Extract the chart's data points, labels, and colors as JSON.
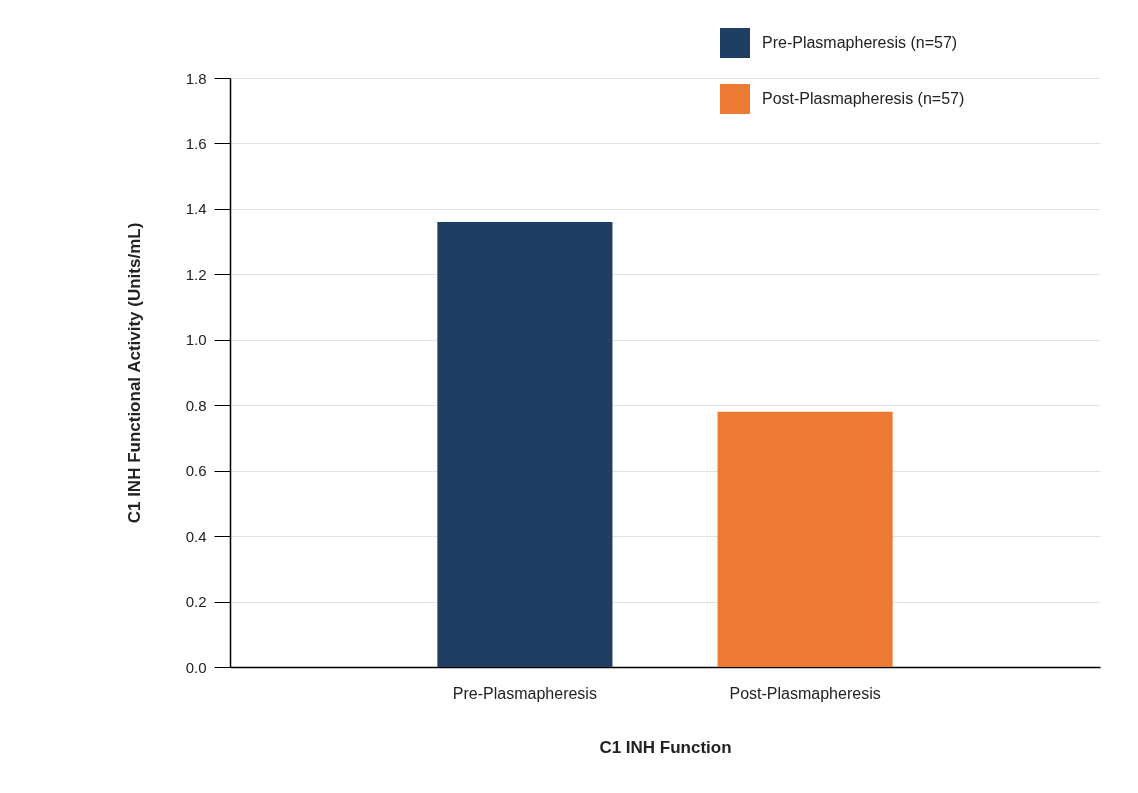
{
  "chart_data": {
    "type": "bar",
    "xlabel": "C1 INH Function",
    "ylabel": "C1 INH Functional Activity (Units/mL)",
    "categories": [
      "Pre-Plasmapheresis",
      "Post-Plasmapheresis"
    ],
    "series": [
      {
        "name": "Pre-Plasmapheresis (n=57)",
        "color": "#1e3f63",
        "values": [
          1.36,
          null
        ]
      },
      {
        "name": "Post-Plasmapheresis (n=57)",
        "color": "#ed7b34",
        "values": [
          null,
          0.78
        ]
      }
    ],
    "ylim": [
      0,
      1.8
    ],
    "yticks": [
      {
        "value": 0,
        "label": "0.0"
      },
      {
        "value": 0.2,
        "label": "0.2"
      },
      {
        "value": 0.4,
        "label": "0.4"
      },
      {
        "value": 0.6,
        "label": "0.6"
      },
      {
        "value": 0.8,
        "label": "0.8"
      },
      {
        "value": 1,
        "label": "1.0"
      },
      {
        "value": 1.2,
        "label": "1.2"
      },
      {
        "value": 1.4,
        "label": "1.4"
      },
      {
        "value": 1.6,
        "label": "1.6"
      },
      {
        "value": 1.8,
        "label": "1.8"
      }
    ],
    "grid": "y",
    "legend": "top right"
  }
}
